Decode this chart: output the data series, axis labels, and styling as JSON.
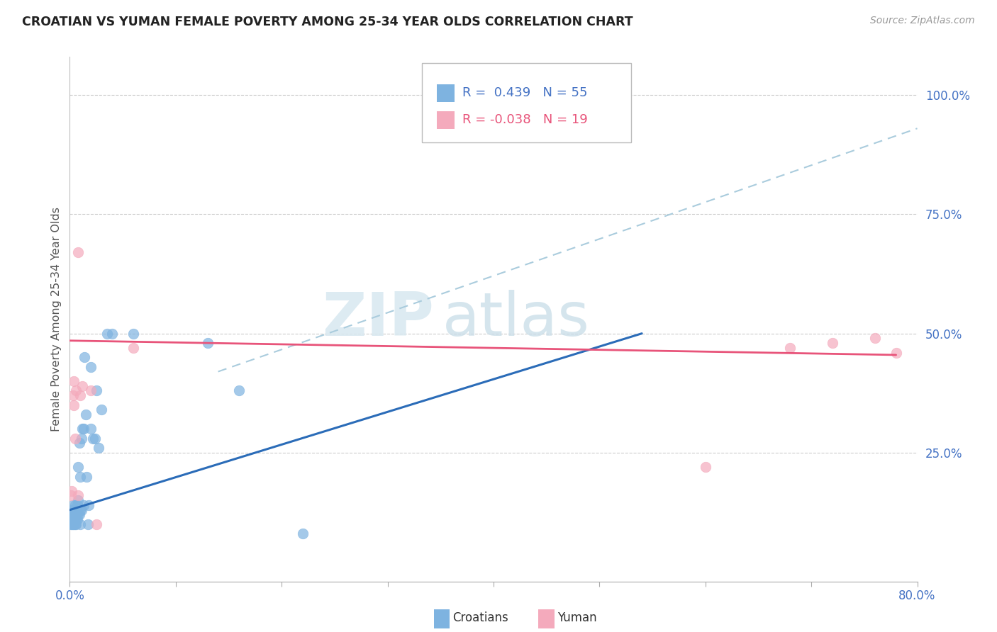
{
  "title": "CROATIAN VS YUMAN FEMALE POVERTY AMONG 25-34 YEAR OLDS CORRELATION CHART",
  "source": "Source: ZipAtlas.com",
  "ylabel": "Female Poverty Among 25-34 Year Olds",
  "xlim": [
    0.0,
    0.8
  ],
  "ylim": [
    -0.02,
    1.08
  ],
  "blue_color": "#7EB3E0",
  "pink_color": "#F4AABC",
  "blue_line_color": "#2B6CB8",
  "pink_line_color": "#E8547A",
  "dashed_line_color": "#AACCDD",
  "legend_blue_R": "0.439",
  "legend_blue_N": "55",
  "legend_pink_R": "-0.038",
  "legend_pink_N": "19",
  "blue_line_x": [
    0.0,
    0.54
  ],
  "blue_line_y": [
    0.13,
    0.5
  ],
  "pink_line_x": [
    0.0,
    0.78
  ],
  "pink_line_y": [
    0.485,
    0.455
  ],
  "dashed_line_x": [
    0.14,
    0.8
  ],
  "dashed_line_y": [
    0.42,
    0.93
  ],
  "croatians_x": [
    0.001,
    0.001,
    0.001,
    0.002,
    0.002,
    0.002,
    0.002,
    0.003,
    0.003,
    0.003,
    0.003,
    0.004,
    0.004,
    0.004,
    0.004,
    0.005,
    0.005,
    0.005,
    0.006,
    0.006,
    0.006,
    0.006,
    0.007,
    0.007,
    0.008,
    0.008,
    0.008,
    0.009,
    0.009,
    0.01,
    0.01,
    0.01,
    0.011,
    0.011,
    0.012,
    0.013,
    0.013,
    0.014,
    0.015,
    0.016,
    0.017,
    0.018,
    0.02,
    0.02,
    0.022,
    0.024,
    0.025,
    0.027,
    0.03,
    0.035,
    0.04,
    0.06,
    0.13,
    0.16,
    0.22
  ],
  "croatians_y": [
    0.1,
    0.11,
    0.12,
    0.1,
    0.11,
    0.12,
    0.13,
    0.1,
    0.11,
    0.12,
    0.14,
    0.1,
    0.11,
    0.12,
    0.13,
    0.1,
    0.12,
    0.14,
    0.1,
    0.11,
    0.12,
    0.13,
    0.11,
    0.14,
    0.12,
    0.15,
    0.22,
    0.12,
    0.27,
    0.1,
    0.13,
    0.2,
    0.13,
    0.28,
    0.3,
    0.14,
    0.3,
    0.45,
    0.33,
    0.2,
    0.1,
    0.14,
    0.43,
    0.3,
    0.28,
    0.28,
    0.38,
    0.26,
    0.34,
    0.5,
    0.5,
    0.5,
    0.48,
    0.38,
    0.08
  ],
  "yuman_x": [
    0.001,
    0.002,
    0.003,
    0.004,
    0.004,
    0.005,
    0.006,
    0.008,
    0.008,
    0.01,
    0.012,
    0.02,
    0.025,
    0.06,
    0.6,
    0.68,
    0.72,
    0.76,
    0.78
  ],
  "yuman_y": [
    0.16,
    0.17,
    0.37,
    0.35,
    0.4,
    0.28,
    0.38,
    0.67,
    0.16,
    0.37,
    0.39,
    0.38,
    0.1,
    0.47,
    0.22,
    0.47,
    0.48,
    0.49,
    0.46
  ]
}
